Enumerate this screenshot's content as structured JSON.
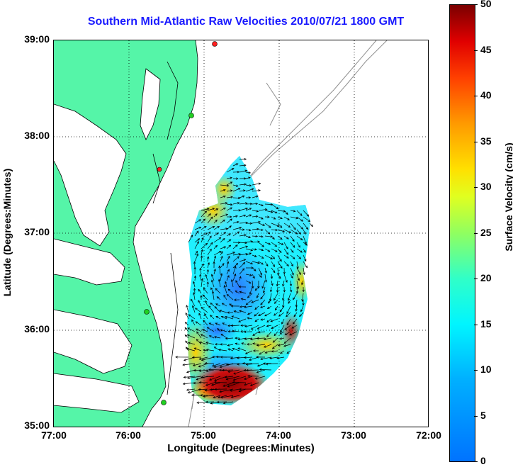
{
  "title": "Southern Mid-Atlantic Raw Velocities 2010/07/21 1800 GMT",
  "xlabel": "Longitude (Degrees:Minutes)",
  "ylabel": "Latitude (Degrees:Minutes)",
  "x_ticks": [
    "77:00",
    "76:00",
    "75:00",
    "74:00",
    "73:00",
    "72:00"
  ],
  "y_ticks": [
    "39:00",
    "38:00",
    "37:00",
    "36:00",
    "35:00"
  ],
  "colorbar": {
    "label": "Surface Velocity (cm/s)",
    "ticks": [
      "50",
      "45",
      "40",
      "35",
      "30",
      "25",
      "20",
      "15",
      "10",
      "5",
      "0"
    ],
    "range": [
      0,
      50
    ]
  },
  "colors": {
    "land": "#55f5a8",
    "water": "#ffffff",
    "title": "#1a1aff",
    "vectors": "#000000",
    "isobath": "#909090"
  },
  "map": {
    "lon_range": [
      -77,
      -72
    ],
    "lat_range": [
      35,
      39
    ],
    "grid": true,
    "markers": [
      {
        "name": "station-red",
        "lon": -74.88,
        "lat": 39.0,
        "color": "#ff2020"
      },
      {
        "name": "station-green-1",
        "lon": -75.14,
        "lat": 38.23,
        "color": "#20d020"
      },
      {
        "name": "station-red-2",
        "lon": -75.47,
        "lat": 37.68,
        "color": "#ff2020"
      },
      {
        "name": "station-green-2",
        "lon": -75.65,
        "lat": 36.19,
        "color": "#20d020"
      },
      {
        "name": "station-green-3",
        "lon": -75.53,
        "lat": 35.26,
        "color": "#20d020"
      }
    ]
  }
}
